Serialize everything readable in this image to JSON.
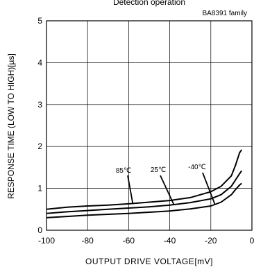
{
  "chart_data": {
    "type": "line",
    "title": "Detection operation",
    "subtitle": "BA8391 family",
    "xlabel": "OUTPUT DRIVE VOLTAGE[mV]",
    "ylabel": "RESPONSE TIME (LOW TO HIGH)[µs]",
    "xlim": [
      -100,
      0
    ],
    "ylim": [
      0,
      5
    ],
    "x_ticks": [
      -100,
      -80,
      -60,
      -40,
      -20,
      0
    ],
    "y_ticks": [
      0,
      1,
      2,
      3,
      4,
      5
    ],
    "grid": true,
    "series": [
      {
        "name": "85°C",
        "x": [
          -100,
          -90,
          -80,
          -70,
          -60,
          -50,
          -40,
          -30,
          -20,
          -15,
          -10,
          -8,
          -6,
          -5
        ],
        "y": [
          0.5,
          0.55,
          0.58,
          0.6,
          0.63,
          0.67,
          0.71,
          0.78,
          0.92,
          1.05,
          1.3,
          1.55,
          1.85,
          1.92
        ]
      },
      {
        "name": "25°C",
        "x": [
          -100,
          -90,
          -80,
          -70,
          -60,
          -50,
          -40,
          -30,
          -20,
          -15,
          -10,
          -8,
          -6,
          -5
        ],
        "y": [
          0.4,
          0.44,
          0.47,
          0.5,
          0.53,
          0.56,
          0.6,
          0.66,
          0.75,
          0.85,
          1.05,
          1.2,
          1.35,
          1.42
        ]
      },
      {
        "name": "-40°C",
        "x": [
          -100,
          -90,
          -80,
          -70,
          -60,
          -50,
          -40,
          -30,
          -20,
          -15,
          -10,
          -8,
          -6,
          -5
        ],
        "y": [
          0.3,
          0.33,
          0.36,
          0.38,
          0.4,
          0.43,
          0.46,
          0.51,
          0.58,
          0.67,
          0.85,
          0.97,
          1.08,
          1.12
        ]
      }
    ],
    "annotations": [
      {
        "text": "85℃",
        "series": 0
      },
      {
        "text": "25℃",
        "series": 1
      },
      {
        "text": "-40℃",
        "series": 2
      }
    ]
  }
}
